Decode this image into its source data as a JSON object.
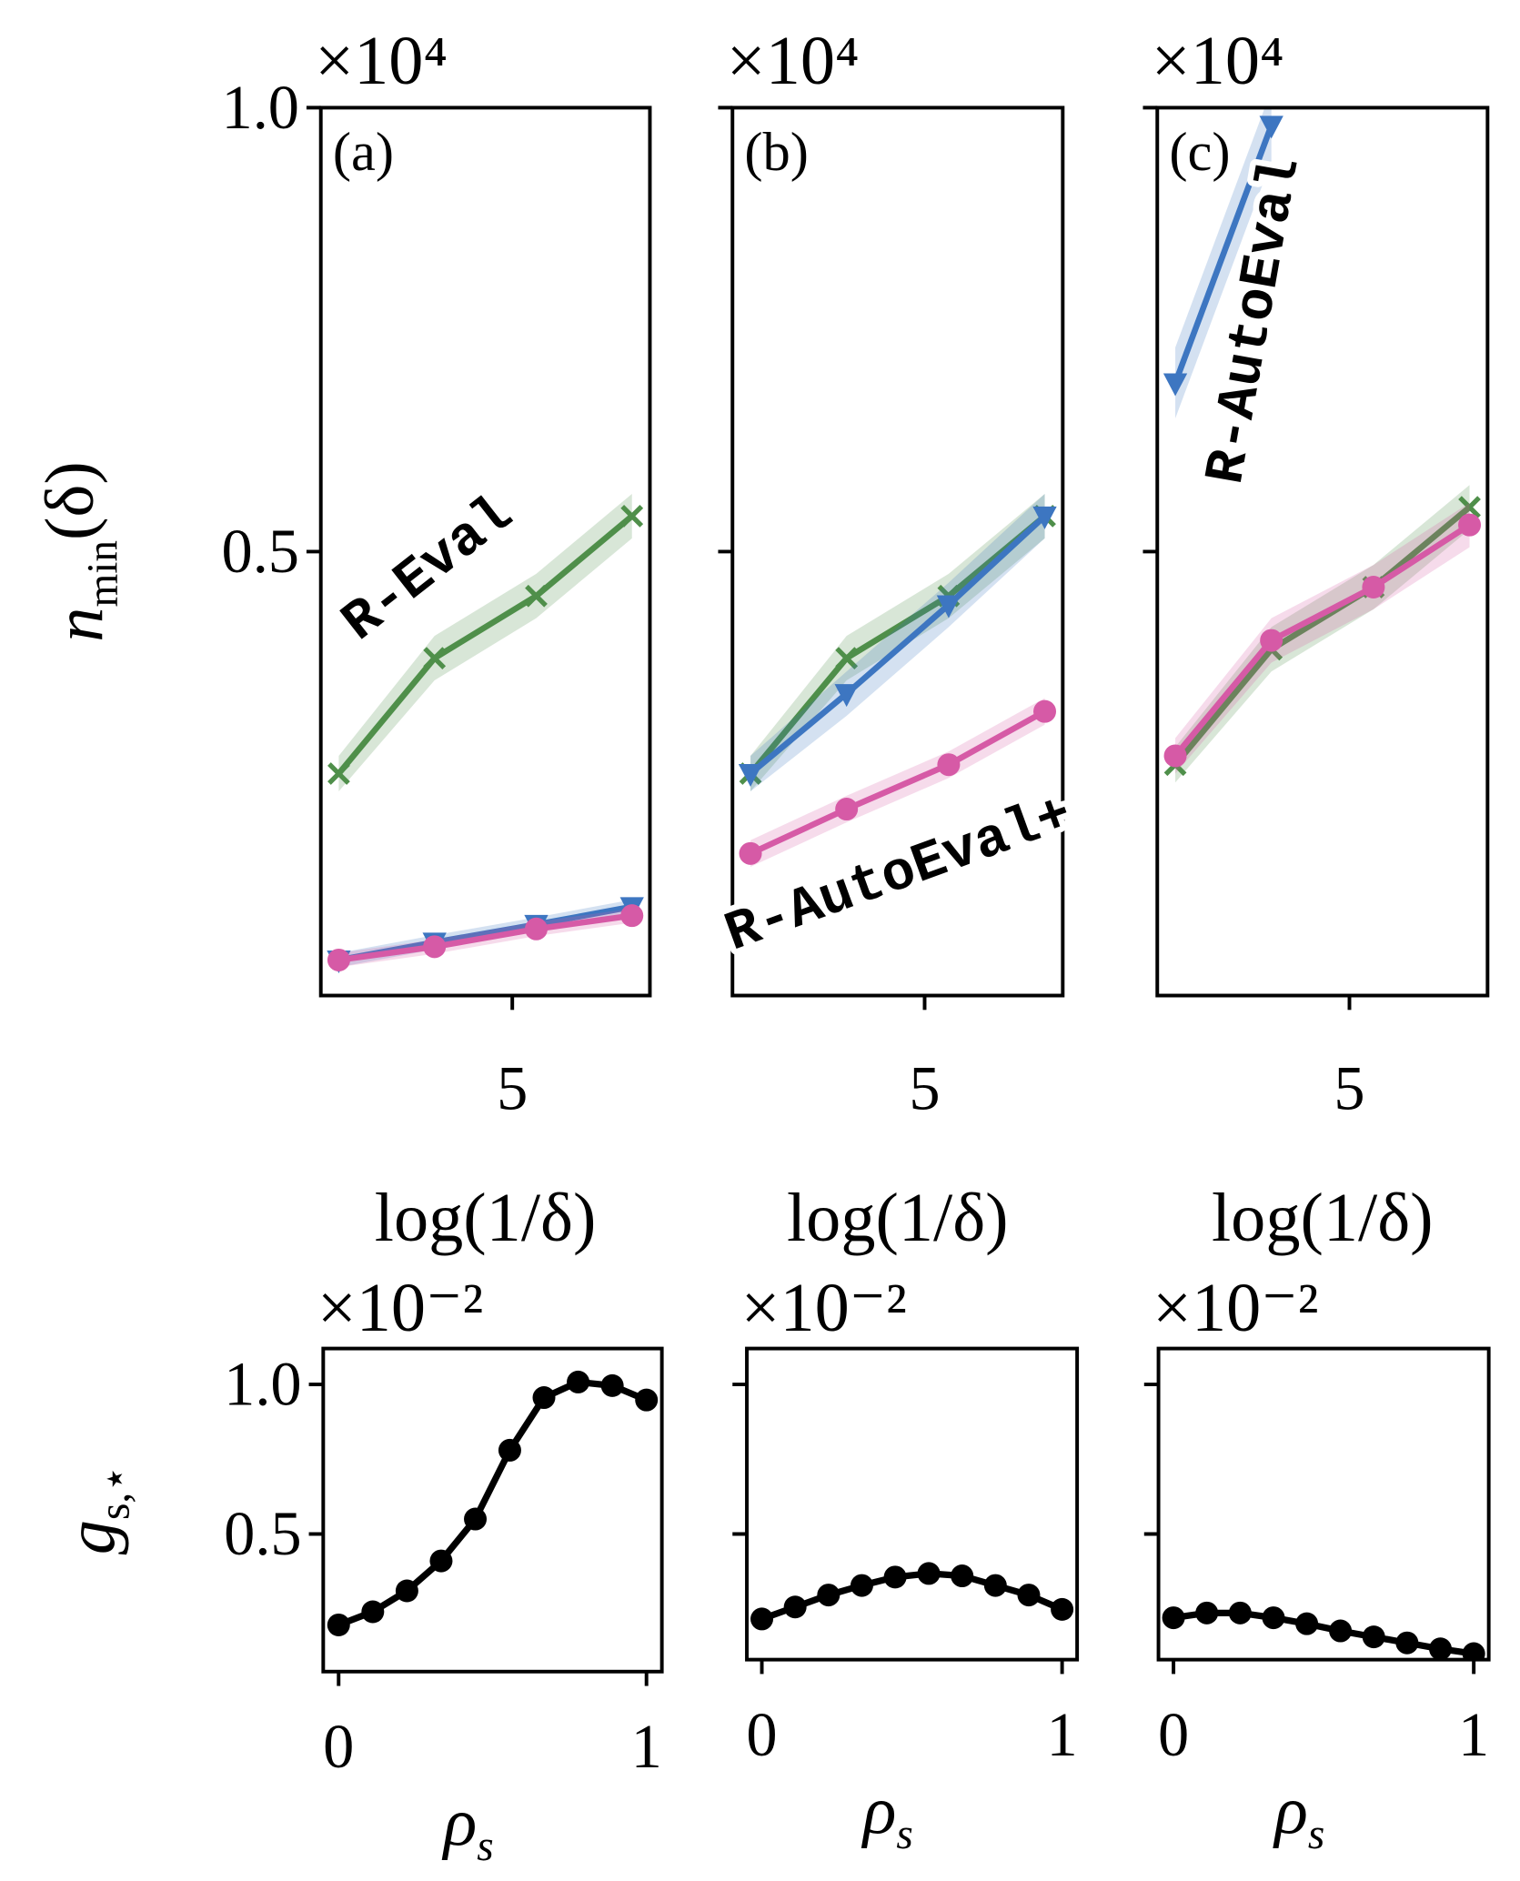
{
  "chart_data": [
    {
      "type": "line",
      "panel_label": "(a)",
      "y_multiplier": "×10⁴",
      "xlabel": "log(1/δ)",
      "ylabel": {
        "base": "n",
        "sub": "min",
        "rest": "(δ)"
      },
      "annotations": [
        "R-Eval"
      ],
      "show_ytick_labels": true,
      "x": [
        2.1,
        3.7,
        5.4,
        7.0
      ],
      "xlim": [
        1.8,
        7.3
      ],
      "xticks": [
        5
      ],
      "ylim": [
        0,
        1
      ],
      "yticks": [
        0.5,
        {
          "value": 1,
          "label": "1.0"
        }
      ],
      "series": [
        {
          "color": "#4f8f4a",
          "marker": "x",
          "values": [
            0.25,
            0.38,
            0.45,
            0.54
          ],
          "band": [
            0.02,
            0.025,
            0.025,
            0.025
          ]
        },
        {
          "color": "#3d76c1",
          "marker": "tri",
          "values": [
            0.04,
            0.06,
            0.08,
            0.1
          ],
          "band": [
            0.008,
            0.008,
            0.008,
            0.008
          ]
        },
        {
          "color": "#d65aa6",
          "marker": "o",
          "values": [
            0.04,
            0.055,
            0.075,
            0.09
          ],
          "band": [
            0.008,
            0.008,
            0.008,
            0.008
          ]
        }
      ]
    },
    {
      "type": "line",
      "panel_label": "(b)",
      "y_multiplier": "×10⁴",
      "xlabel": "log(1/δ)",
      "annotations": [
        "R-AutoEval+"
      ],
      "show_ytick_labels": false,
      "x": [
        2.1,
        3.7,
        5.4,
        7.0
      ],
      "xlim": [
        1.8,
        7.3
      ],
      "xticks": [
        5
      ],
      "ylim": [
        0,
        1
      ],
      "yticks": [
        0.5,
        1
      ],
      "series": [
        {
          "color": "#4f8f4a",
          "marker": "x",
          "values": [
            0.25,
            0.38,
            0.45,
            0.54
          ],
          "band": [
            0.02,
            0.025,
            0.025,
            0.025
          ]
        },
        {
          "color": "#3d76c1",
          "marker": "tri",
          "values": [
            0.25,
            0.34,
            0.44,
            0.54
          ],
          "band": [
            0.02,
            0.025,
            0.025,
            0.025
          ]
        },
        {
          "color": "#d65aa6",
          "marker": "o",
          "values": [
            0.16,
            0.21,
            0.26,
            0.32
          ],
          "band": [
            0.015,
            0.015,
            0.015,
            0.015
          ]
        }
      ]
    },
    {
      "type": "line",
      "panel_label": "(c)",
      "y_multiplier": "×10⁴",
      "xlabel": "log(1/δ)",
      "annotations": [
        "R-AutoEval"
      ],
      "show_ytick_labels": false,
      "x": [
        2.1,
        3.7,
        5.4,
        7.0
      ],
      "xlim": [
        1.8,
        7.3
      ],
      "xticks": [
        5
      ],
      "ylim": [
        0,
        1
      ],
      "yticks": [
        0.5,
        1
      ],
      "series": [
        {
          "color": "#4f8f4a",
          "marker": "x",
          "values": [
            0.26,
            0.39,
            0.46,
            0.55
          ],
          "band": [
            0.02,
            0.025,
            0.025,
            0.025
          ]
        },
        {
          "color": "#3d76c1",
          "marker": "tri",
          "values": [
            0.69,
            0.98,
            null,
            null
          ],
          "band": [
            0.04,
            0.04,
            null,
            null
          ]
        },
        {
          "color": "#d65aa6",
          "marker": "o",
          "values": [
            0.27,
            0.4,
            0.46,
            0.53
          ],
          "band": [
            0.02,
            0.025,
            0.025,
            0.025
          ]
        }
      ]
    },
    {
      "type": "line",
      "y_multiplier": "×10⁻²",
      "xlabel": {
        "base": "ρ",
        "sub": "s"
      },
      "ylabel": {
        "base": "g",
        "sub": "s,⋆"
      },
      "show_ytick_labels": true,
      "x": [
        0,
        0.111,
        0.222,
        0.333,
        0.444,
        0.556,
        0.667,
        0.778,
        0.889,
        1
      ],
      "xlim": [
        -0.05,
        1.05
      ],
      "xticks": [
        0,
        1
      ],
      "ylim": [
        0.04,
        1.12
      ],
      "yticks": [
        0.5,
        {
          "value": 1,
          "label": "1.0"
        }
      ],
      "series": [
        {
          "color": "#000000",
          "marker": "o",
          "values": [
            0.196,
            0.24,
            0.31,
            0.41,
            0.55,
            0.78,
            0.956,
            1.008,
            0.996,
            0.948
          ]
        }
      ]
    },
    {
      "type": "line",
      "y_multiplier": "×10⁻²",
      "xlabel": {
        "base": "ρ",
        "sub": "s"
      },
      "show_ytick_labels": false,
      "x": [
        0,
        0.111,
        0.222,
        0.333,
        0.444,
        0.556,
        0.667,
        0.778,
        0.889,
        1
      ],
      "xlim": [
        -0.05,
        1.05
      ],
      "xticks": [
        0,
        1
      ],
      "ylim": [
        0.08,
        1.12
      ],
      "yticks": [
        0.5,
        1
      ],
      "series": [
        {
          "color": "#000000",
          "marker": "o",
          "values": [
            0.216,
            0.256,
            0.296,
            0.328,
            0.356,
            0.368,
            0.36,
            0.328,
            0.296,
            0.248
          ]
        }
      ]
    },
    {
      "type": "line",
      "y_multiplier": "×10⁻²",
      "xlabel": {
        "base": "ρ",
        "sub": "s"
      },
      "show_ytick_labels": false,
      "x": [
        0,
        0.111,
        0.222,
        0.333,
        0.444,
        0.556,
        0.667,
        0.778,
        0.889,
        1
      ],
      "xlim": [
        -0.05,
        1.05
      ],
      "xticks": [
        0,
        1
      ],
      "ylim": [
        0.08,
        1.12
      ],
      "yticks": [
        0.5,
        1
      ],
      "series": [
        {
          "color": "#000000",
          "marker": "o",
          "values": [
            0.22,
            0.236,
            0.236,
            0.22,
            0.2,
            0.176,
            0.156,
            0.136,
            0.116,
            0.1
          ]
        }
      ]
    }
  ]
}
